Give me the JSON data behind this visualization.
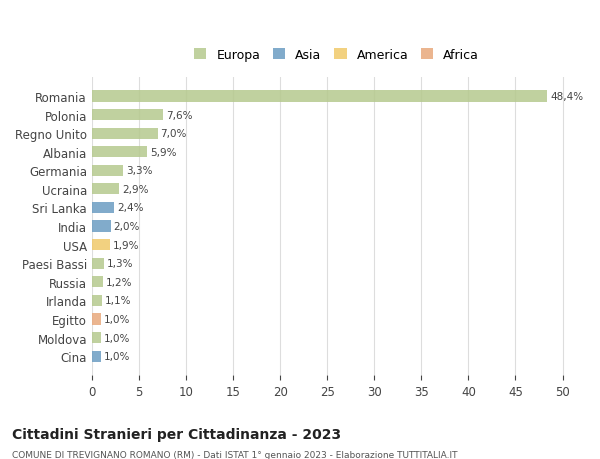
{
  "countries": [
    "Romania",
    "Polonia",
    "Regno Unito",
    "Albania",
    "Germania",
    "Ucraina",
    "Sri Lanka",
    "India",
    "USA",
    "Paesi Bassi",
    "Russia",
    "Irlanda",
    "Egitto",
    "Moldova",
    "Cina"
  ],
  "values": [
    48.4,
    7.6,
    7.0,
    5.9,
    3.3,
    2.9,
    2.4,
    2.0,
    1.9,
    1.3,
    1.2,
    1.1,
    1.0,
    1.0,
    1.0
  ],
  "labels": [
    "48,4%",
    "7,6%",
    "7,0%",
    "5,9%",
    "3,3%",
    "2,9%",
    "2,4%",
    "2,0%",
    "1,9%",
    "1,3%",
    "1,2%",
    "1,1%",
    "1,0%",
    "1,0%",
    "1,0%"
  ],
  "continents": [
    "Europa",
    "Europa",
    "Europa",
    "Europa",
    "Europa",
    "Europa",
    "Asia",
    "Asia",
    "America",
    "Europa",
    "Europa",
    "Europa",
    "Africa",
    "Europa",
    "Asia"
  ],
  "continent_colors": {
    "Europa": "#b5c98e",
    "Asia": "#6b9dc2",
    "America": "#f0c96a",
    "Africa": "#e8a87c"
  },
  "legend_order": [
    "Europa",
    "Asia",
    "America",
    "Africa"
  ],
  "title": "Cittadini Stranieri per Cittadinanza - 2023",
  "subtitle": "COMUNE DI TREVIGNANO ROMANO (RM) - Dati ISTAT 1° gennaio 2023 - Elaborazione TUTTITALIA.IT",
  "xlim": [
    0,
    52
  ],
  "xticks": [
    0,
    5,
    10,
    15,
    20,
    25,
    30,
    35,
    40,
    45,
    50
  ],
  "background_color": "#ffffff",
  "grid_color": "#dddddd"
}
